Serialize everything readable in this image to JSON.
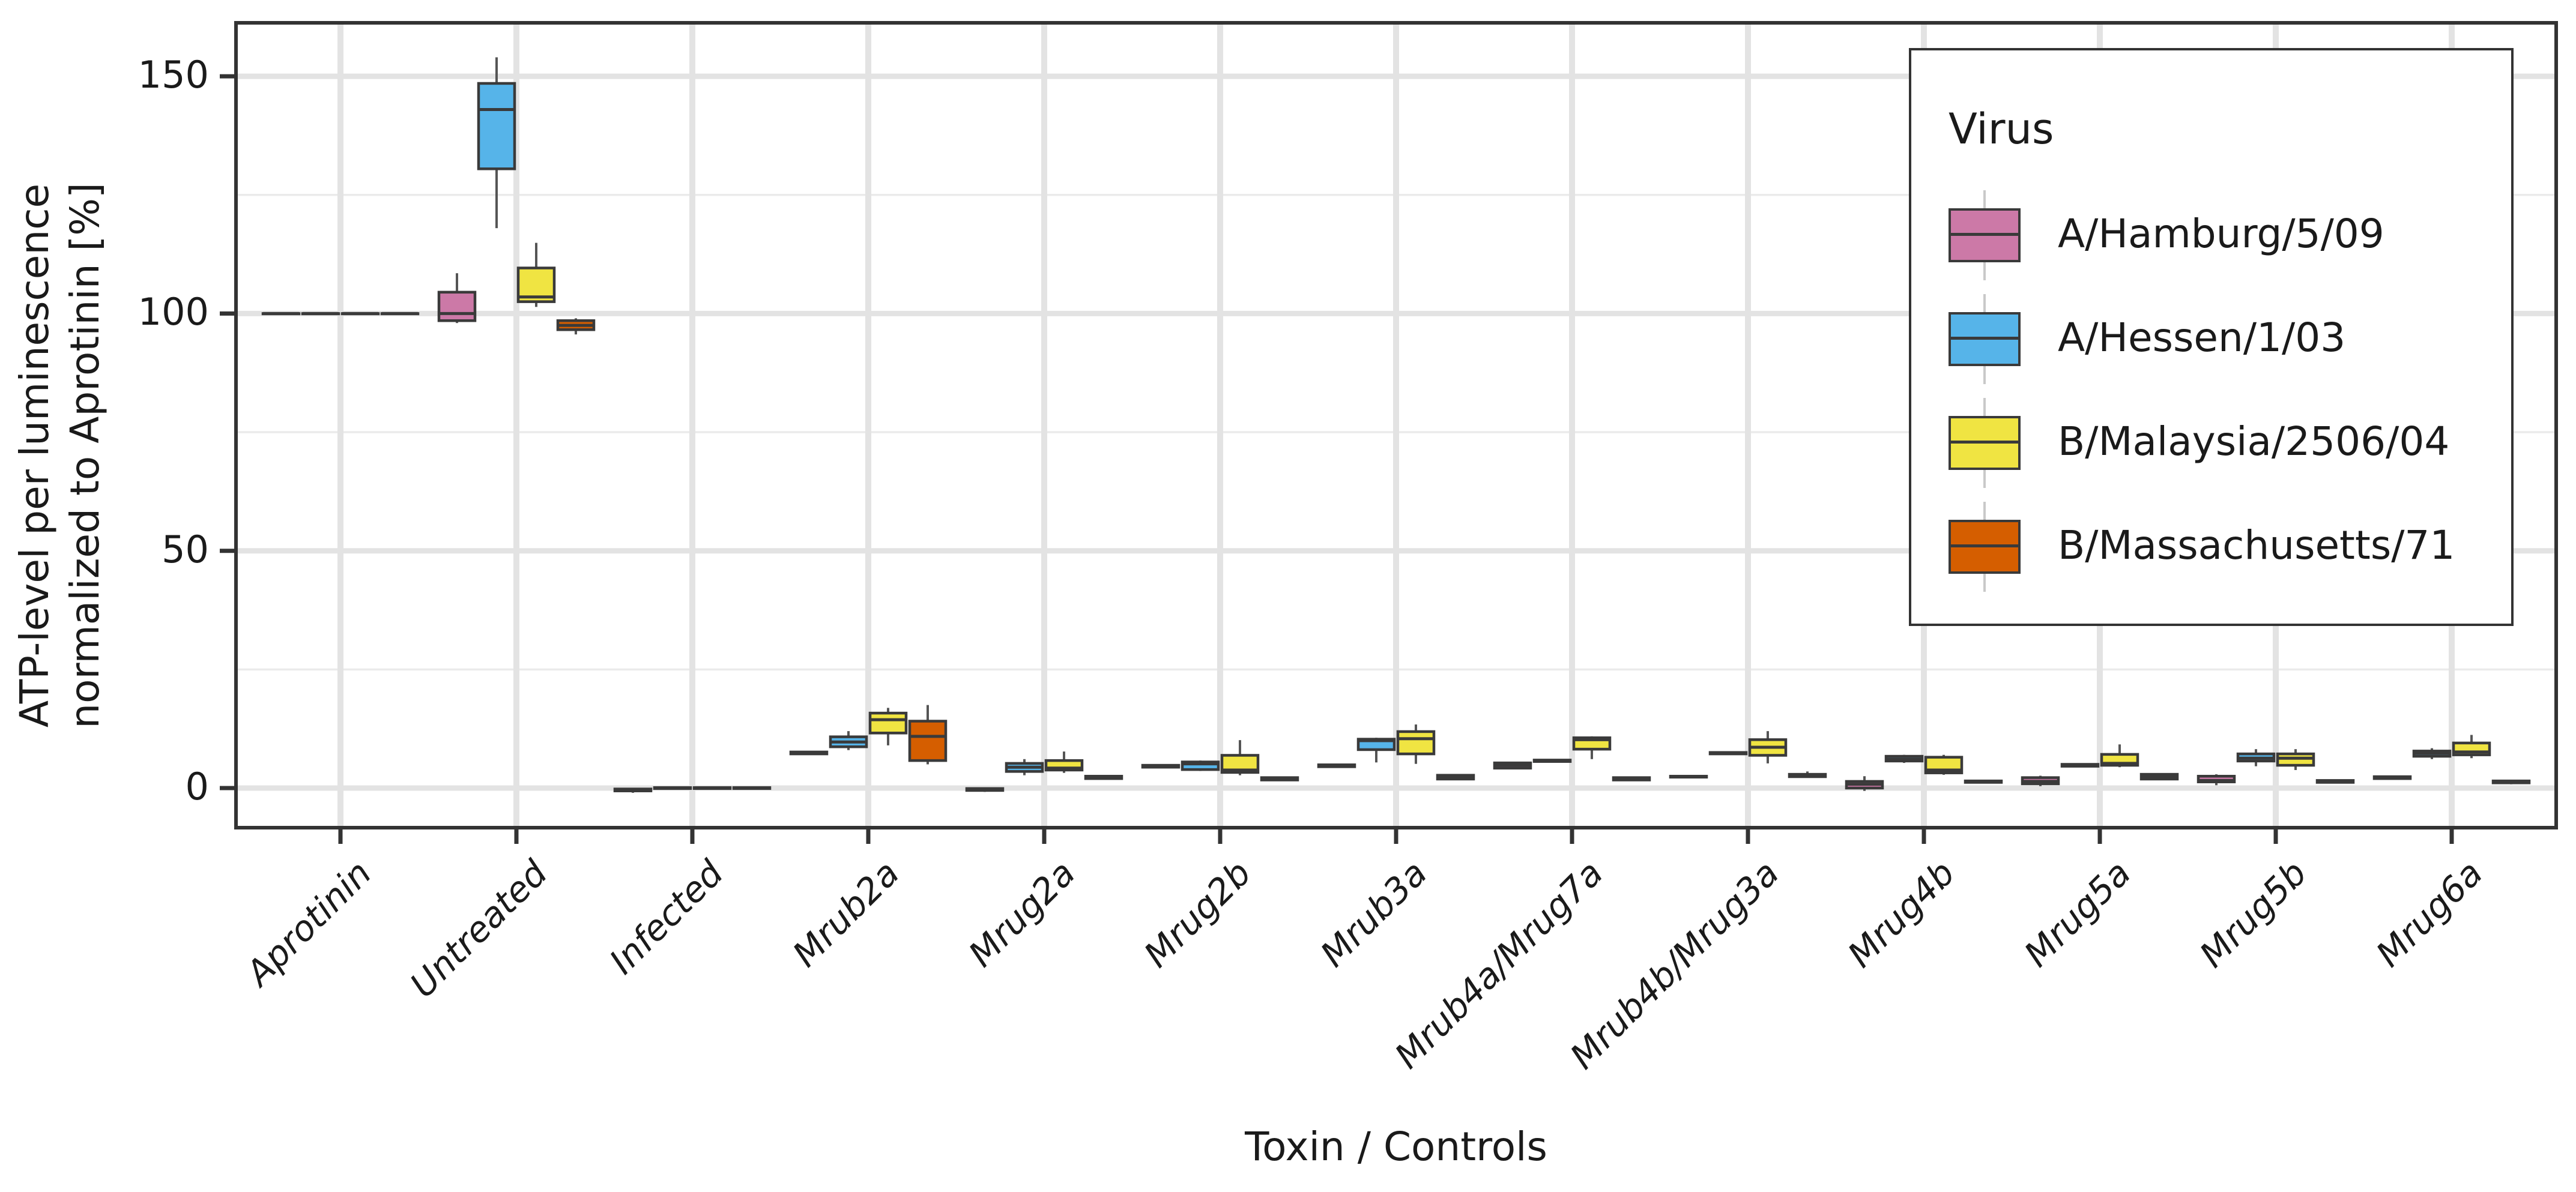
{
  "chart_data": {
    "type": "boxplot",
    "xlabel": "Toxin / Controls",
    "ylabel_lines": [
      "ATP-level per luminescence",
      "normalized to Aprotinin [%]"
    ],
    "legend_title": "Virus",
    "ylim": [
      -8.4,
      161.5
    ],
    "yticks": [
      0,
      50,
      100,
      150
    ],
    "yminor": [
      25,
      75,
      125
    ],
    "grid": "on",
    "legend_position": "top-right-inside",
    "categories": [
      "Aprotinin",
      "Untreated",
      "Infected",
      "Mrub2a",
      "Mrug2a",
      "Mrug2b",
      "Mrub3a",
      "Mrub4a/Mrug7a",
      "Mrub4b/Mrug3a",
      "Mrug4b",
      "Mrug5a",
      "Mrug5b",
      "Mrug6a"
    ],
    "box_value_order": [
      "whisker_low",
      "q1",
      "median",
      "q3",
      "whisker_high"
    ],
    "series": [
      {
        "name": "A/Hamburg/5/09",
        "color": "#CC79A7",
        "boxes": [
          [
            100,
            100,
            100,
            100,
            100
          ],
          [
            98,
            98.5,
            100,
            104.5,
            108.5
          ],
          [
            -1,
            -0.6,
            -0.4,
            -0.2,
            0
          ],
          [
            7.0,
            7.2,
            7.4,
            7.6,
            7.8
          ],
          [
            -0.8,
            -0.5,
            -0.3,
            -0.1,
            0.1
          ],
          [
            4.2,
            4.4,
            4.6,
            4.8,
            5.0
          ],
          [
            4.3,
            4.5,
            4.7,
            4.9,
            5.1
          ],
          [
            4.0,
            4.2,
            4.8,
            5.3,
            5.5
          ],
          [
            2.1,
            2.3,
            2.4,
            2.5,
            2.7
          ],
          [
            -0.6,
            0.0,
            0.8,
            1.4,
            2.5
          ],
          [
            0.4,
            0.9,
            1.4,
            2.2,
            2.6
          ],
          [
            0.6,
            1.3,
            1.6,
            2.5,
            2.9
          ],
          [
            1.9,
            2.0,
            2.2,
            2.4,
            2.5
          ]
        ]
      },
      {
        "name": "A/Hessen/1/03",
        "color": "#56B4E9",
        "boxes": [
          [
            100,
            100,
            100,
            100,
            100
          ],
          [
            118,
            130.5,
            143,
            148.5,
            154
          ],
          [
            -0.2,
            -0.1,
            0,
            0.1,
            0.2
          ],
          [
            8.0,
            8.7,
            9.7,
            10.8,
            12.0
          ],
          [
            2.7,
            3.5,
            4.4,
            5.2,
            6.1
          ],
          [
            3.6,
            3.9,
            5.1,
            5.5,
            5.8
          ],
          [
            5.4,
            8.1,
            10.0,
            10.3,
            10.6
          ],
          [
            5.4,
            5.6,
            5.7,
            5.9,
            6.0
          ],
          [
            7.0,
            7.2,
            7.3,
            7.5,
            7.7
          ],
          [
            5.3,
            5.7,
            6.1,
            6.7,
            7.0
          ],
          [
            4.4,
            4.6,
            4.8,
            5.0,
            5.2
          ],
          [
            4.6,
            5.7,
            6.3,
            7.2,
            8.2
          ],
          [
            6.1,
            6.7,
            7.3,
            7.8,
            8.4
          ]
        ]
      },
      {
        "name": "B/Malaysia/2506/04",
        "color": "#F0E442",
        "boxes": [
          [
            100,
            100,
            100,
            100,
            100
          ],
          [
            101.4,
            102.5,
            103.5,
            109.6,
            114.9
          ],
          [
            -0.2,
            -0.1,
            0,
            0.1,
            0.2
          ],
          [
            9.0,
            11.6,
            14.4,
            15.8,
            16.9
          ],
          [
            3.2,
            3.8,
            4.2,
            5.8,
            7.7
          ],
          [
            2.7,
            3.3,
            3.8,
            6.9,
            10.1
          ],
          [
            5.1,
            7.2,
            10.4,
            11.9,
            13.4
          ],
          [
            6.1,
            8.2,
            10.2,
            10.6,
            10.9
          ],
          [
            5.2,
            6.9,
            8.6,
            10.2,
            12.0
          ],
          [
            2.8,
            3.2,
            3.8,
            6.5,
            7.0
          ],
          [
            4.4,
            4.8,
            5.2,
            7.1,
            9.2
          ],
          [
            3.8,
            4.8,
            6.3,
            7.2,
            8.2
          ],
          [
            6.3,
            7.0,
            7.6,
            9.5,
            11.2
          ]
        ]
      },
      {
        "name": "B/Massachusetts/71",
        "color": "#D55E00",
        "boxes": [
          [
            100,
            100,
            100,
            100,
            100
          ],
          [
            95.6,
            96.6,
            97.5,
            98.5,
            99.0
          ],
          [
            -0.2,
            -0.1,
            0,
            0.1,
            0.2
          ],
          [
            5.0,
            5.8,
            10.9,
            14.1,
            17.5
          ],
          [
            1.9,
            2.0,
            2.2,
            2.5,
            2.7
          ],
          [
            1.5,
            1.7,
            1.9,
            2.2,
            2.4
          ],
          [
            1.8,
            1.9,
            2.3,
            2.7,
            2.9
          ],
          [
            1.6,
            1.7,
            1.9,
            2.2,
            2.4
          ],
          [
            2.3,
            2.4,
            2.6,
            2.9,
            3.5
          ],
          [
            1.1,
            1.2,
            1.3,
            1.5,
            1.6
          ],
          [
            1.7,
            1.9,
            2.4,
            2.9,
            3.1
          ],
          [
            1.0,
            1.2,
            1.4,
            1.6,
            1.8
          ],
          [
            0.8,
            1.1,
            1.3,
            1.5,
            1.6
          ]
        ]
      }
    ],
    "colors": {
      "panel_background": "#ffffff",
      "panel_border": "#333333",
      "grid_major": "#e3e3e3",
      "grid_minor": "#ebebeb",
      "box_border": "#3a3a3a",
      "whisker": "#555555",
      "tick": "#333333",
      "text": "#1a1a1a"
    }
  }
}
